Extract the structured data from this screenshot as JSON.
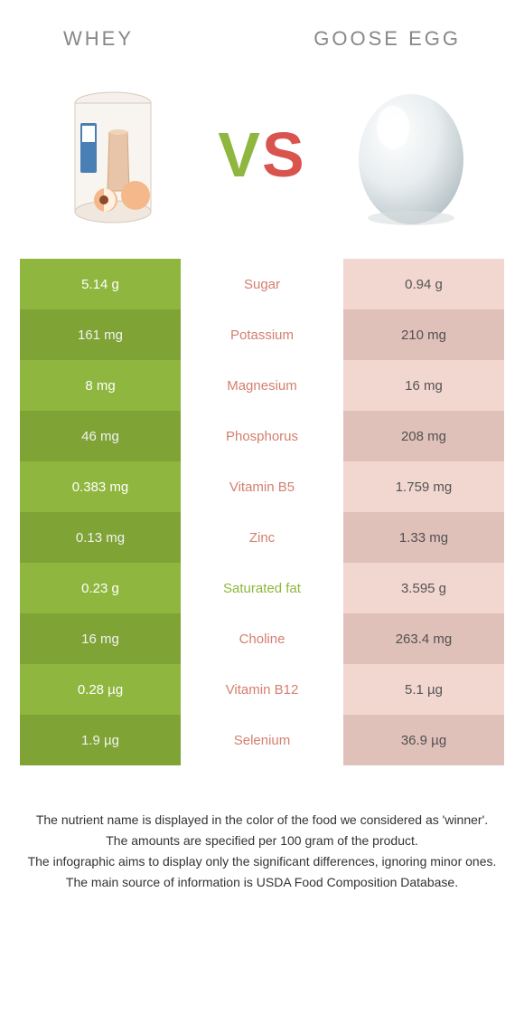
{
  "colors": {
    "whey": "#8fb63e",
    "goose": "#f2d6d0",
    "whey_alt": "#86ac38",
    "goose_alt": "#eccbc4",
    "winner_whey_text": "#8fb63e",
    "winner_goose_text": "#d47f6f",
    "cell_text_left": "#ffffff",
    "cell_text_right": "#555555"
  },
  "header": {
    "left": "WHEY",
    "right": "GOOSE EGG"
  },
  "vs": {
    "v": "V",
    "s": "S"
  },
  "rows": [
    {
      "nutrient": "Sugar",
      "left": "5.14 g",
      "right": "0.94 g",
      "winner": "goose"
    },
    {
      "nutrient": "Potassium",
      "left": "161 mg",
      "right": "210 mg",
      "winner": "goose"
    },
    {
      "nutrient": "Magnesium",
      "left": "8 mg",
      "right": "16 mg",
      "winner": "goose"
    },
    {
      "nutrient": "Phosphorus",
      "left": "46 mg",
      "right": "208 mg",
      "winner": "goose"
    },
    {
      "nutrient": "Vitamin B5",
      "left": "0.383 mg",
      "right": "1.759 mg",
      "winner": "goose"
    },
    {
      "nutrient": "Zinc",
      "left": "0.13 mg",
      "right": "1.33 mg",
      "winner": "goose"
    },
    {
      "nutrient": "Saturated fat",
      "left": "0.23 g",
      "right": "3.595 g",
      "winner": "whey"
    },
    {
      "nutrient": "Choline",
      "left": "16 mg",
      "right": "263.4 mg",
      "winner": "goose"
    },
    {
      "nutrient": "Vitamin B12",
      "left": "0.28 µg",
      "right": "5.1 µg",
      "winner": "goose"
    },
    {
      "nutrient": "Selenium",
      "left": "1.9 µg",
      "right": "36.9 µg",
      "winner": "goose"
    }
  ],
  "footer": {
    "l1": "The nutrient name is displayed in the color of the food we considered as 'winner'.",
    "l2": "The amounts are specified per 100 gram of the product.",
    "l3": "The infographic aims to display only the significant differences, ignoring minor ones.",
    "l4": "The main source of information is USDA Food Composition Database."
  }
}
